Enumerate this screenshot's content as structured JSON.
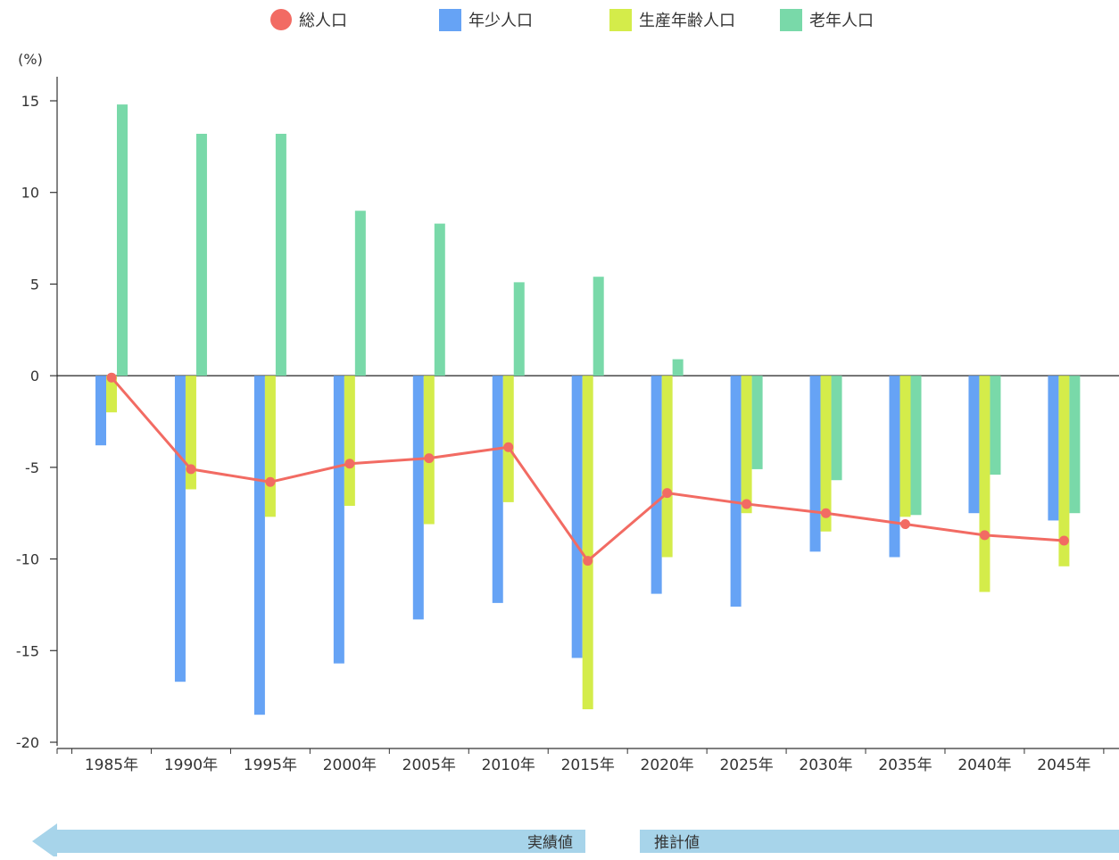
{
  "chart_data": {
    "type": "bar",
    "categories": [
      "1985年",
      "1990年",
      "1995年",
      "2000年",
      "2005年",
      "2010年",
      "2015年",
      "2020年",
      "2025年",
      "2030年",
      "2035年",
      "2040年",
      "2045年"
    ],
    "series": [
      {
        "name": "総人口",
        "type": "line",
        "color": "#f26b63",
        "values": [
          -0.1,
          -5.1,
          -5.8,
          -4.8,
          -4.5,
          -3.9,
          -10.1,
          -6.4,
          -7.0,
          -7.5,
          -8.1,
          -8.7,
          -9.0
        ]
      },
      {
        "name": "年少人口",
        "type": "bar",
        "color": "#66a3f5",
        "values": [
          -3.8,
          -16.7,
          -18.5,
          -15.7,
          -13.3,
          -12.4,
          -15.4,
          -11.9,
          -12.6,
          -9.6,
          -9.9,
          -7.5,
          -7.9
        ]
      },
      {
        "name": "生産年齢人口",
        "type": "bar",
        "color": "#d4ec4a",
        "values": [
          -2.0,
          -6.2,
          -7.7,
          -7.1,
          -8.1,
          -6.9,
          -18.2,
          -9.9,
          -7.5,
          -8.5,
          -7.7,
          -11.8,
          -10.4
        ]
      },
      {
        "name": "老年人口",
        "type": "bar",
        "color": "#79d9a9",
        "values": [
          14.8,
          13.2,
          13.2,
          9.0,
          8.3,
          5.1,
          5.4,
          0.9,
          -5.1,
          -5.7,
          -7.6,
          -5.4,
          -7.5
        ]
      }
    ],
    "ylabel": "(%)",
    "ylim": [
      -20,
      15
    ],
    "yticks": [
      15,
      10,
      5,
      0,
      -5,
      -10,
      -15,
      -20
    ],
    "legend_position": "top",
    "grid": false
  },
  "annotations": {
    "actual": "実績値",
    "projected": "推計値"
  }
}
